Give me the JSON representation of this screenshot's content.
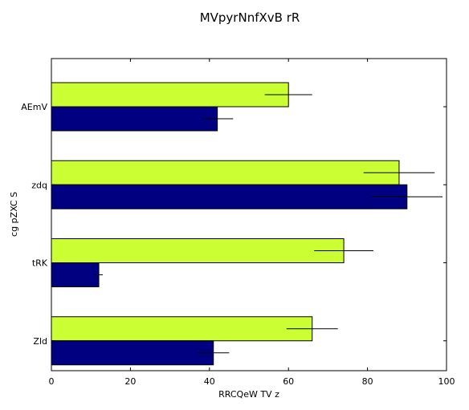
{
  "chart_data": {
    "type": "bar",
    "orientation": "horizontal",
    "title": "MVpyrNnfXvB rR",
    "xlabel": "RRCQeW  TV z",
    "ylabel": "cg pZXC S",
    "xlim": [
      0,
      100
    ],
    "xticks": [
      "0",
      "20",
      "40",
      "60",
      "80",
      "100"
    ],
    "categories": [
      "AEmV",
      "zdq",
      "tRK",
      "Zld"
    ],
    "grid": false,
    "series": [
      {
        "color": "#ccff33",
        "values": [
          60,
          88,
          74,
          66
        ],
        "errors": [
          6,
          9,
          7.5,
          6.5
        ]
      },
      {
        "color": "#000080",
        "values": [
          42,
          90,
          12,
          41
        ],
        "errors": [
          4,
          9,
          1,
          4
        ]
      }
    ]
  }
}
